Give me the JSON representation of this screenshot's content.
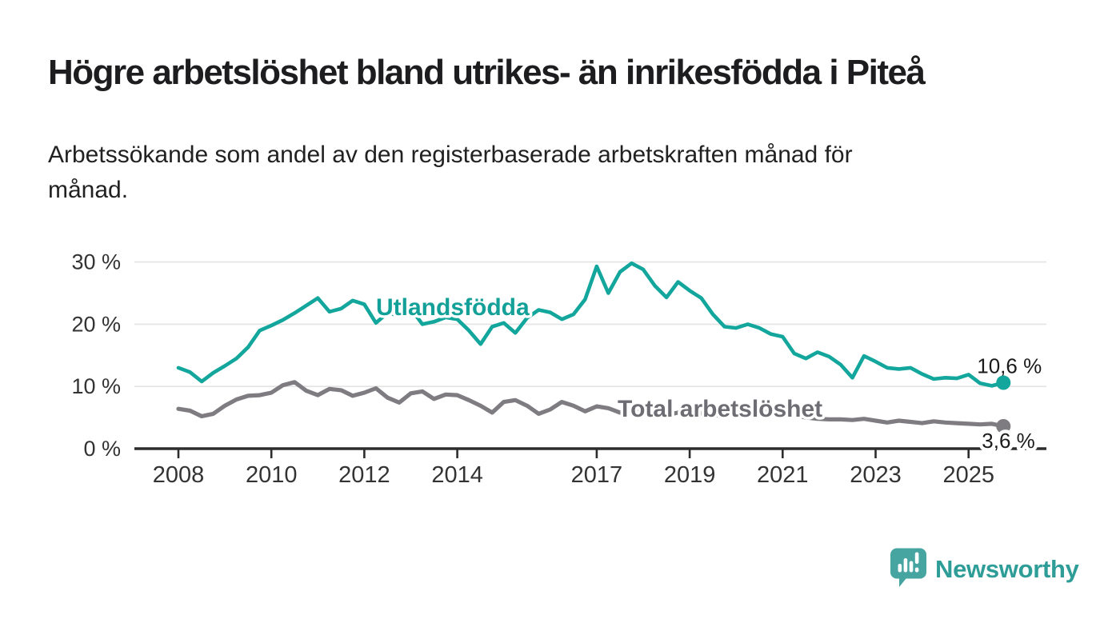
{
  "header": {
    "title": "Högre arbetslöshet bland utrikes- än inrikesfödda i Piteå",
    "subtitle_line1": "Arbetssökande som andel av den registerbaserade arbetskraften månad för",
    "subtitle_line2": "månad."
  },
  "colors": {
    "utlandsfodda": "#13A69C",
    "utlandsfodda_label": "#13A098",
    "total": "#7E7C81",
    "total_label": "#6F6D74",
    "axis": "#2d2d2d",
    "grid": "#e3e3e3",
    "tick_label": "#333333",
    "annotation": "#1b1b1b",
    "logo_icon": "#46A5A1",
    "logo_text": "#2E9D98"
  },
  "chart_data": {
    "type": "line",
    "title": "Högre arbetslöshet bland utrikes- än inrikesfödda i Piteå",
    "subtitle": "Arbetssökande som andel av den registerbaserade arbetskraften månad för månad.",
    "xlabel": "",
    "ylabel": "",
    "grid": "horizontal",
    "legend_position": "inline-labels",
    "x_range": [
      2008.0,
      2025.83
    ],
    "ylim": [
      0,
      31
    ],
    "y_ticks": [
      {
        "value": 0,
        "label": "0 %"
      },
      {
        "value": 10,
        "label": "10 %"
      },
      {
        "value": 20,
        "label": "20 %"
      },
      {
        "value": 30,
        "label": "30 %"
      }
    ],
    "x_ticks": [
      {
        "year": 2008,
        "label": "2008"
      },
      {
        "year": 2010,
        "label": "2010"
      },
      {
        "year": 2012,
        "label": "2012"
      },
      {
        "year": 2014,
        "label": "2014"
      },
      {
        "year": 2017,
        "label": "2017"
      },
      {
        "year": 2019,
        "label": "2019"
      },
      {
        "year": 2021,
        "label": "2021"
      },
      {
        "year": 2023,
        "label": "2023"
      },
      {
        "year": 2025,
        "label": "2025"
      }
    ],
    "x": [
      2008.0,
      2008.25,
      2008.5,
      2008.75,
      2009.0,
      2009.25,
      2009.5,
      2009.75,
      2010.0,
      2010.25,
      2010.5,
      2010.75,
      2011.0,
      2011.25,
      2011.5,
      2011.75,
      2012.0,
      2012.25,
      2012.5,
      2012.75,
      2013.0,
      2013.25,
      2013.5,
      2013.75,
      2014.0,
      2014.25,
      2014.5,
      2014.75,
      2015.0,
      2015.25,
      2015.5,
      2015.75,
      2016.0,
      2016.25,
      2016.5,
      2016.75,
      2017.0,
      2017.25,
      2017.5,
      2017.75,
      2018.0,
      2018.25,
      2018.5,
      2018.75,
      2019.0,
      2019.25,
      2019.5,
      2019.75,
      2020.0,
      2020.25,
      2020.5,
      2020.75,
      2021.0,
      2021.25,
      2021.5,
      2021.75,
      2022.0,
      2022.25,
      2022.5,
      2022.75,
      2023.0,
      2023.25,
      2023.5,
      2023.75,
      2024.0,
      2024.25,
      2024.5,
      2024.75,
      2025.0,
      2025.25,
      2025.5,
      2025.75
    ],
    "series": [
      {
        "id": "utlandsfodda",
        "name": "Utlandsfödda",
        "end_label": "10,6 %",
        "end_value": 10.6,
        "values": [
          13.0,
          12.3,
          10.8,
          12.2,
          13.3,
          14.5,
          16.3,
          19.0,
          19.8,
          20.7,
          21.8,
          23.0,
          24.2,
          22.0,
          22.5,
          23.8,
          23.2,
          20.2,
          21.8,
          21.4,
          22.5,
          20.0,
          20.4,
          21.1,
          20.8,
          19.0,
          16.8,
          19.6,
          20.2,
          18.6,
          21.0,
          22.3,
          21.9,
          20.8,
          21.6,
          24.0,
          29.3,
          25.0,
          28.4,
          29.8,
          28.8,
          26.2,
          24.3,
          26.8,
          25.4,
          24.2,
          21.6,
          19.6,
          19.4,
          20.0,
          19.4,
          18.4,
          18.0,
          15.3,
          14.5,
          15.5,
          14.8,
          13.5,
          11.4,
          14.9,
          14.0,
          13.0,
          12.8,
          13.0,
          12.0,
          11.2,
          11.4,
          11.3,
          11.9,
          10.5,
          10.1,
          10.6
        ]
      },
      {
        "id": "total",
        "name": "Total arbetslöshet",
        "end_label": "3,6 %",
        "end_value": 3.6,
        "values": [
          6.4,
          6.1,
          5.2,
          5.6,
          6.9,
          7.9,
          8.5,
          8.6,
          9.0,
          10.2,
          10.7,
          9.3,
          8.6,
          9.6,
          9.4,
          8.5,
          9.0,
          9.7,
          8.2,
          7.4,
          8.9,
          9.2,
          8.0,
          8.7,
          8.6,
          7.8,
          6.9,
          5.8,
          7.5,
          7.8,
          6.9,
          5.6,
          6.3,
          7.5,
          6.9,
          6.0,
          6.8,
          6.5,
          5.8,
          6.2,
          6.4,
          6.0,
          5.4,
          5.8,
          6.0,
          5.7,
          5.2,
          5.6,
          6.2,
          6.6,
          6.4,
          6.0,
          5.8,
          5.4,
          5.0,
          4.8,
          4.7,
          4.7,
          4.6,
          4.8,
          4.5,
          4.2,
          4.5,
          4.3,
          4.1,
          4.4,
          4.2,
          4.1,
          4.0,
          3.9,
          4.0,
          3.6
        ]
      }
    ]
  },
  "footer": {
    "brand": "Newsworthy"
  }
}
